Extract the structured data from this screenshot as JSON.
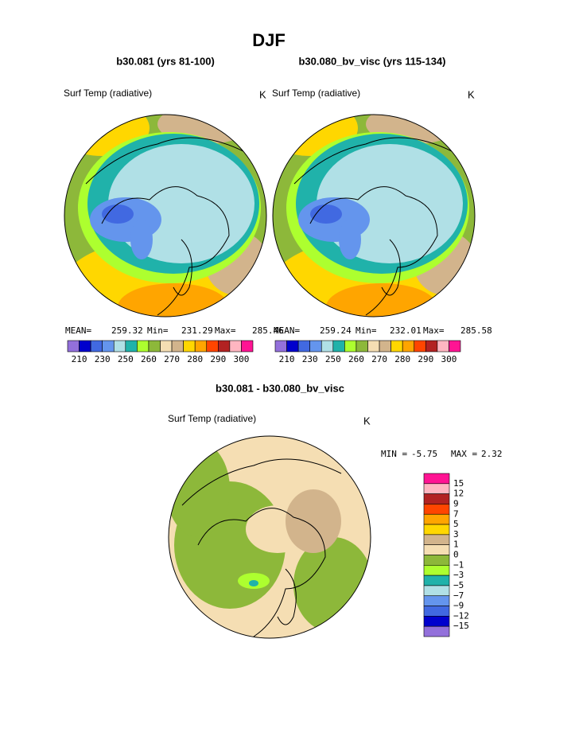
{
  "title": "DJF",
  "panels": [
    {
      "case": "b30.081 (yrs 81-100)",
      "variable": "Surf Temp (radiative)",
      "units": "K",
      "stats": [
        "MEAN=",
        "259.32",
        "Min=",
        "231.29",
        "Max=",
        "285.46"
      ]
    },
    {
      "case": "b30.080_bv_visc (yrs 115-134)",
      "variable": "Surf Temp (radiative)",
      "units": "K",
      "stats": [
        "MEAN=",
        "259.24",
        "Min=",
        "232.01",
        "Max=",
        "285.58"
      ]
    }
  ],
  "colorbar": {
    "colors": [
      "#9370db",
      "#0000cd",
      "#4169e1",
      "#6495ed",
      "#b0e0e6",
      "#20b2aa",
      "#adff2f",
      "#8db83a",
      "#f5deb3",
      "#d2b48c",
      "#ffd700",
      "#ffa500",
      "#ff4500",
      "#b22222",
      "#ffb6c1",
      "#ff1493"
    ],
    "labels": [
      "210",
      "230",
      "250",
      "260",
      "270",
      "280",
      "290",
      "300"
    ]
  },
  "difference": {
    "title": "b30.081 - b30.080_bv_visc",
    "variable": "Surf Temp (radiative)",
    "units": "K",
    "stats": [
      "MIN =",
      "-5.75",
      "MAX =",
      "2.32"
    ],
    "colorbar": {
      "colors": [
        "#ff1493",
        "#ffb6c1",
        "#b22222",
        "#ff4500",
        "#ffa500",
        "#ffd700",
        "#d2b48c",
        "#f5deb3",
        "#8db83a",
        "#adff2f",
        "#20b2aa",
        "#b0e0e6",
        "#6495ed",
        "#4169e1",
        "#0000cd",
        "#9370db"
      ],
      "labels": [
        "15",
        "12",
        "9",
        "7",
        "5",
        "3",
        "1",
        "0",
        "−1",
        "−3",
        "−5",
        "−7",
        "−9",
        "−12",
        "−15"
      ]
    }
  }
}
